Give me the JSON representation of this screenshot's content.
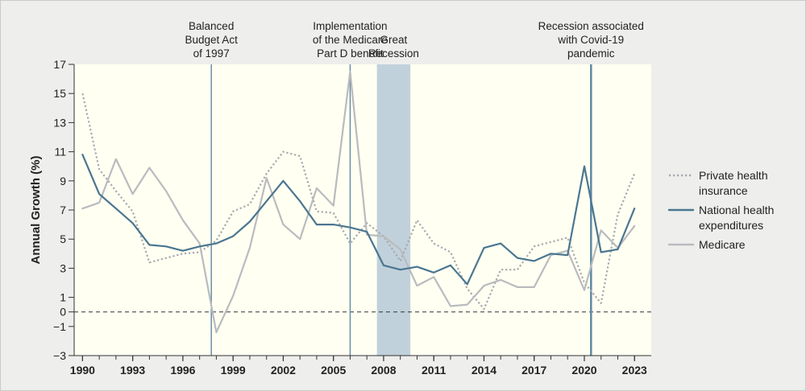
{
  "chart_data": {
    "type": "line",
    "xlabel": "",
    "ylabel": "Annual Growth (%)",
    "xlim": [
      1989.5,
      2024.0
    ],
    "ylim": [
      -3,
      17
    ],
    "y_ticks": [
      -3,
      -1,
      0,
      1,
      3,
      5,
      7,
      9,
      11,
      13,
      15,
      17
    ],
    "x_ticks": [
      1990,
      1993,
      1996,
      1999,
      2002,
      2005,
      2008,
      2011,
      2014,
      2017,
      2020,
      2023
    ],
    "zero_line": 0,
    "legend": "right",
    "x": [
      1990,
      1991,
      1992,
      1993,
      1994,
      1995,
      1996,
      1997,
      1998,
      1999,
      2000,
      2001,
      2002,
      2003,
      2004,
      2005,
      2006,
      2007,
      2008,
      2009,
      2010,
      2011,
      2012,
      2013,
      2014,
      2015,
      2016,
      2017,
      2018,
      2019,
      2020,
      2021,
      2022,
      2023
    ],
    "series": [
      {
        "name": "Private health insurance",
        "label_lines": [
          "Private health",
          "insurance"
        ],
        "style": "dotted",
        "color": "#a7a9ad",
        "values": [
          15.0,
          9.8,
          8.3,
          6.9,
          3.4,
          3.7,
          4.0,
          4.1,
          4.9,
          6.9,
          7.4,
          9.5,
          11.0,
          10.7,
          6.9,
          6.8,
          4.7,
          6.1,
          5.2,
          3.5,
          6.3,
          4.7,
          4.1,
          1.6,
          0.2,
          2.9,
          2.9,
          4.5,
          4.8,
          5.1,
          2.0,
          0.6,
          6.7,
          9.5
        ]
      },
      {
        "name": "National health expenditures",
        "label_lines": [
          "National health",
          "expenditures"
        ],
        "style": "solid",
        "color": "#4a7690",
        "values": [
          10.8,
          8.1,
          7.1,
          6.1,
          4.6,
          4.5,
          4.2,
          4.5,
          4.7,
          5.2,
          6.2,
          7.6,
          9.0,
          7.6,
          6.0,
          6.0,
          5.8,
          5.5,
          3.2,
          2.9,
          3.1,
          2.7,
          3.2,
          1.9,
          4.4,
          4.7,
          3.7,
          3.5,
          4.0,
          3.9,
          10.0,
          4.1,
          4.3,
          7.1
        ]
      },
      {
        "name": "Medicare",
        "label_lines": [
          "Medicare"
        ],
        "style": "solid",
        "color": "#b9bbbe",
        "values": [
          7.1,
          7.5,
          10.5,
          8.1,
          9.9,
          8.3,
          6.3,
          4.7,
          -1.4,
          1.1,
          4.4,
          9.2,
          6.0,
          5.0,
          8.5,
          7.3,
          16.5,
          5.3,
          5.2,
          4.3,
          1.8,
          2.4,
          0.4,
          0.5,
          1.8,
          2.2,
          1.7,
          1.7,
          3.9,
          4.2,
          1.5,
          5.6,
          4.4,
          5.9
        ]
      }
    ],
    "annotations": [
      {
        "type": "vline",
        "x": 1997.7,
        "lines": [
          "Balanced",
          "Budget Act",
          "of 1997"
        ]
      },
      {
        "type": "vline",
        "x": 2006.0,
        "lines": [
          "Implementation",
          "of the Medicare",
          "Part D benefit"
        ]
      },
      {
        "type": "band",
        "x0": 2007.6,
        "x1": 2009.6,
        "lines": [
          "Great",
          "Recession"
        ]
      },
      {
        "type": "vline",
        "x": 2020.4,
        "lines": [
          "Recession associated",
          "with Covid-19",
          "pandemic"
        ]
      }
    ]
  }
}
